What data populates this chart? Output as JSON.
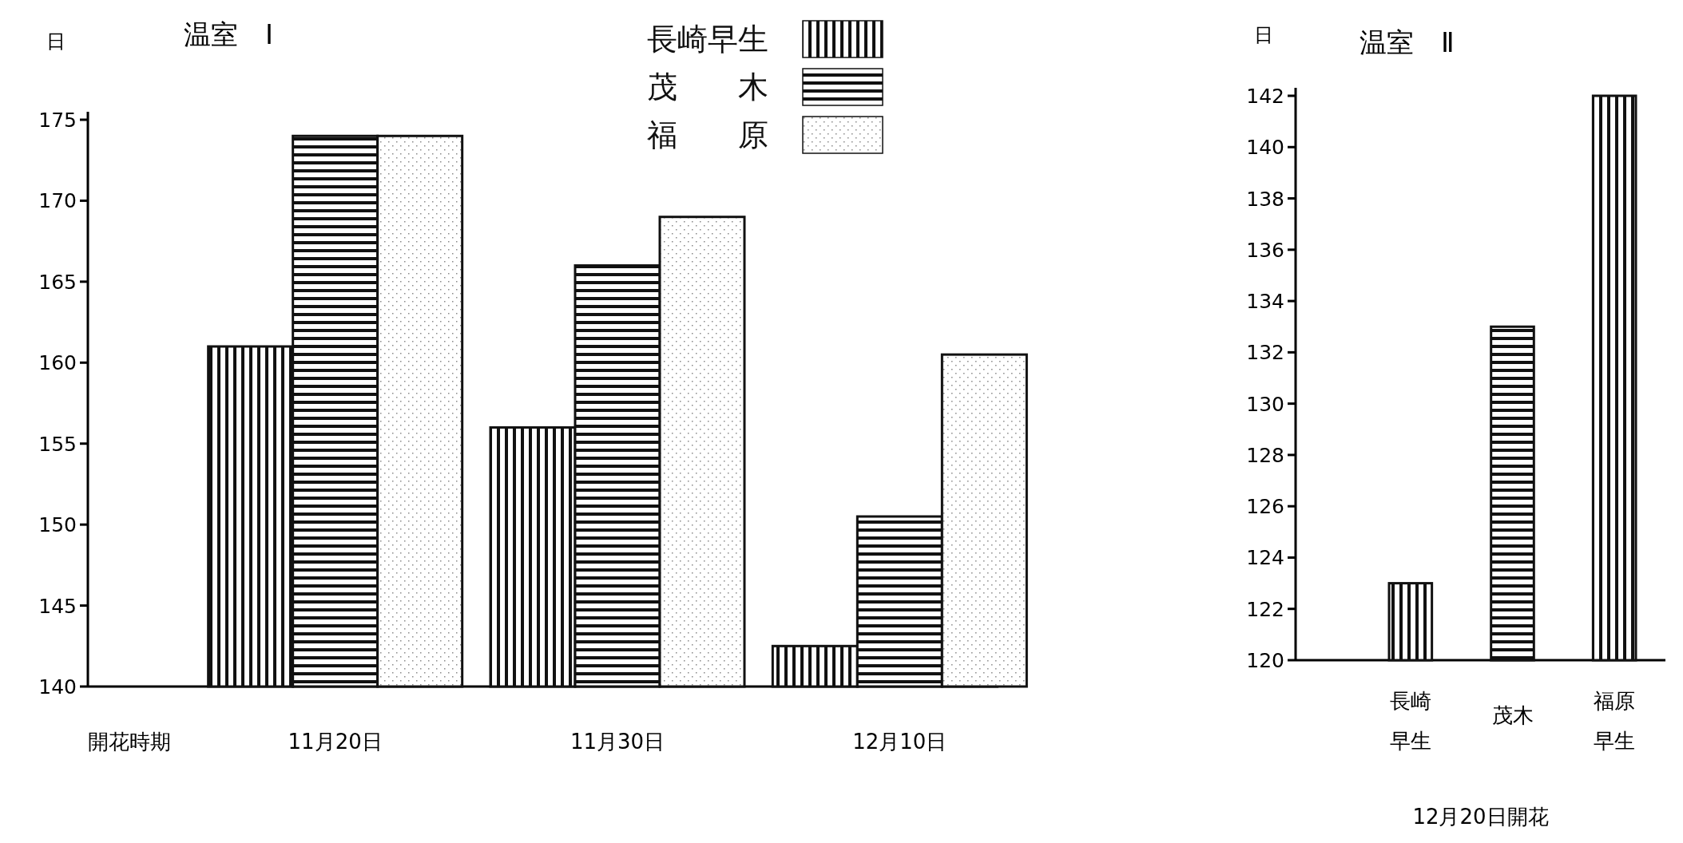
{
  "chart_data": [
    {
      "type": "bar",
      "title": "温室　Ⅰ",
      "ylabel": "日",
      "xlabel": "開花時期",
      "categories": [
        "11月20日",
        "11月30日",
        "12月10日"
      ],
      "ylim": [
        140,
        175
      ],
      "yticks": [
        140,
        145,
        150,
        155,
        160,
        165,
        170,
        175
      ],
      "legend": "top right",
      "grid": false,
      "series": [
        {
          "name": "長崎早生",
          "color": "#111111",
          "values": [
            161,
            156,
            142.5
          ]
        },
        {
          "name": "茂　　木",
          "color": "#111111",
          "values": [
            174,
            166,
            150.5
          ]
        },
        {
          "name": "福　　原",
          "color": "#111111",
          "values": [
            174,
            169,
            160.5
          ]
        }
      ]
    },
    {
      "type": "bar",
      "title": "温室　Ⅱ",
      "ylabel": "日",
      "xlabel": "12月20日開花",
      "categories": [
        "長崎早生",
        "茂木",
        "福原早生"
      ],
      "ylim": [
        120,
        142
      ],
      "yticks": [
        120,
        122,
        124,
        126,
        128,
        130,
        132,
        134,
        136,
        138,
        140,
        142
      ],
      "legend": false,
      "grid": false,
      "values": [
        123,
        133,
        142
      ],
      "colors": [
        "#111111",
        "#111111",
        "#111111"
      ]
    }
  ]
}
